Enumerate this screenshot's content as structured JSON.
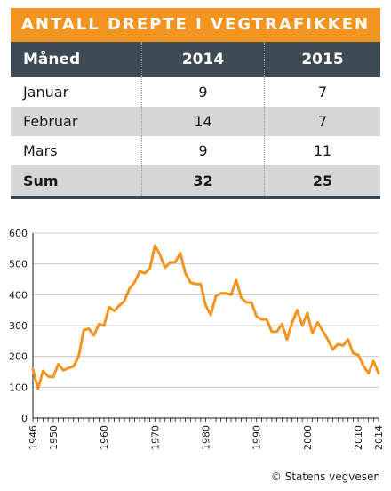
{
  "title": "ANTALL DREPTE I VEGTRAFIKKEN",
  "table": {
    "headers": [
      "Måned",
      "2014",
      "2015"
    ],
    "rows": [
      [
        "Januar",
        "9",
        "7"
      ],
      [
        "Februar",
        "14",
        "7"
      ],
      [
        "Mars",
        "9",
        "11"
      ],
      [
        "Sum",
        "32",
        "25"
      ]
    ]
  },
  "credit": "© Statens vegvesen",
  "colors": {
    "title_bg": "#f39421",
    "header_bg": "#3e4a53",
    "line": "#f39421",
    "row_shade": "#d6d6d6"
  },
  "chart_data": {
    "type": "line",
    "title": "",
    "xlabel": "",
    "ylabel": "",
    "xlim": [
      1946,
      2014
    ],
    "ylim": [
      0,
      600
    ],
    "yticks": [
      0,
      100,
      200,
      300,
      400,
      500,
      600
    ],
    "xtick_labels": [
      "1946",
      "1950",
      "1960",
      "1970",
      "1980",
      "1990",
      "2000",
      "2010",
      "2014"
    ],
    "grid": "horizontal",
    "series": [
      {
        "x": [
          1946,
          1947,
          1948,
          1949,
          1950,
          1951,
          1952,
          1953,
          1954,
          1955,
          1956,
          1957,
          1958,
          1959,
          1960,
          1961,
          1962,
          1963,
          1964,
          1965,
          1966,
          1967,
          1968,
          1969,
          1970,
          1971,
          1972,
          1973,
          1974,
          1975,
          1976,
          1977,
          1978,
          1979,
          1980,
          1981,
          1982,
          1983,
          1984,
          1985,
          1986,
          1987,
          1988,
          1989,
          1990,
          1991,
          1992,
          1993,
          1994,
          1995,
          1996,
          1997,
          1998,
          1999,
          2000,
          2001,
          2002,
          2003,
          2004,
          2005,
          2006,
          2007,
          2008,
          2009,
          2010,
          2011,
          2012,
          2013,
          2014
        ],
        "y": [
          159,
          95,
          153,
          135,
          133,
          175,
          155,
          162,
          168,
          200,
          285,
          290,
          268,
          305,
          300,
          360,
          348,
          365,
          380,
          420,
          440,
          475,
          470,
          485,
          560,
          530,
          488,
          505,
          505,
          535,
          470,
          440,
          435,
          435,
          365,
          335,
          395,
          405,
          405,
          400,
          448,
          390,
          375,
          375,
          330,
          320,
          320,
          280,
          280,
          305,
          255,
          310,
          350,
          300,
          340,
          275,
          310,
          283,
          255,
          222,
          240,
          235,
          255,
          210,
          205,
          170,
          145,
          185,
          145
        ]
      }
    ]
  }
}
